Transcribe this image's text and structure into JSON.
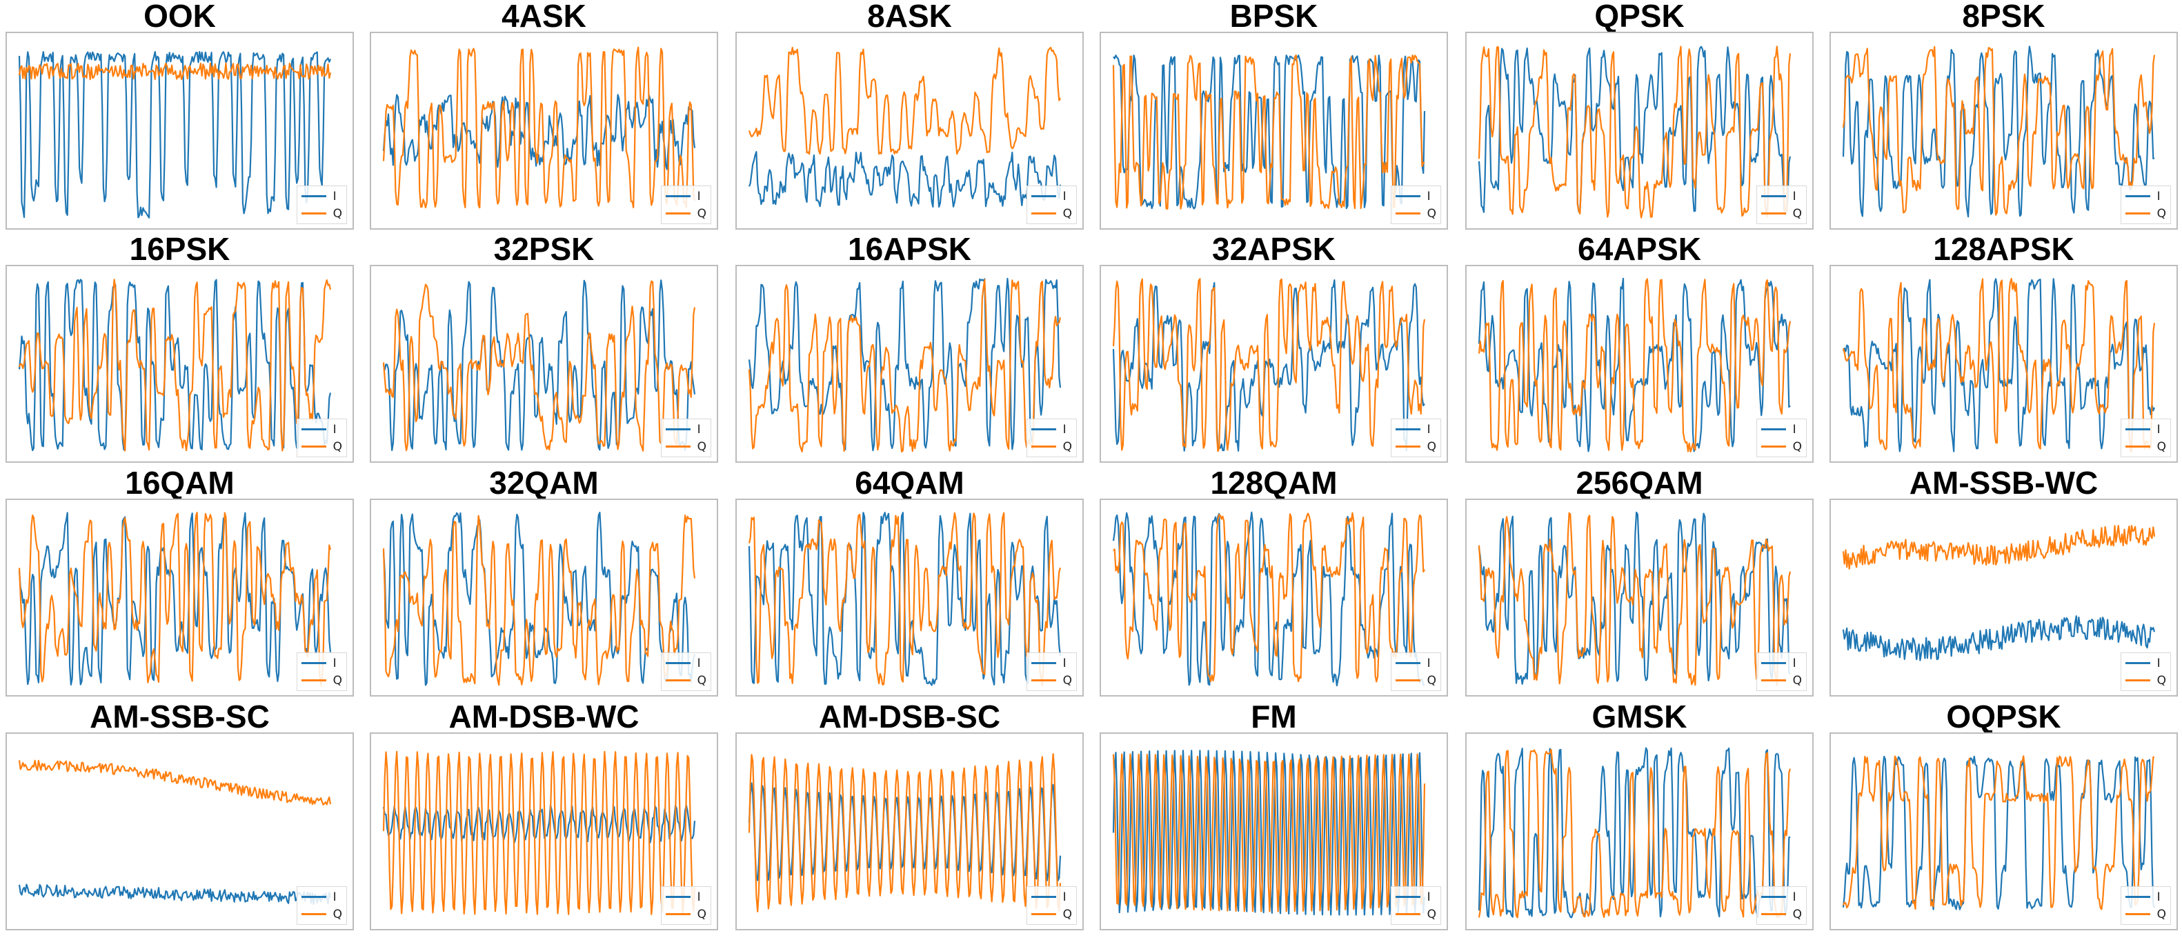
{
  "colors": {
    "I": "#1f77b4",
    "Q": "#ff7f0e",
    "frame": "#bdbdbd"
  },
  "legend": {
    "labels": [
      "I",
      "Q"
    ]
  },
  "chart_data": [
    {
      "type": "line",
      "title": "OOK",
      "series": [
        {
          "name": "I",
          "pattern": "ook_i"
        },
        {
          "name": "Q",
          "pattern": "ook_q"
        }
      ]
    },
    {
      "type": "line",
      "title": "4ASK",
      "series": [
        {
          "name": "I",
          "pattern": "ask_i"
        },
        {
          "name": "Q",
          "pattern": "ask_q"
        }
      ]
    },
    {
      "type": "line",
      "title": "8ASK",
      "series": [
        {
          "name": "I",
          "pattern": "ask8_i"
        },
        {
          "name": "Q",
          "pattern": "ask8_q"
        }
      ]
    },
    {
      "type": "line",
      "title": "BPSK",
      "series": [
        {
          "name": "I",
          "pattern": "bpsk"
        },
        {
          "name": "Q",
          "pattern": "bpsk"
        }
      ]
    },
    {
      "type": "line",
      "title": "QPSK",
      "series": [
        {
          "name": "I",
          "pattern": "psk"
        },
        {
          "name": "Q",
          "pattern": "psk"
        }
      ]
    },
    {
      "type": "line",
      "title": "8PSK",
      "series": [
        {
          "name": "I",
          "pattern": "psk"
        },
        {
          "name": "Q",
          "pattern": "psk"
        }
      ]
    },
    {
      "type": "line",
      "title": "16PSK",
      "series": [
        {
          "name": "I",
          "pattern": "psk"
        },
        {
          "name": "Q",
          "pattern": "psk"
        }
      ]
    },
    {
      "type": "line",
      "title": "32PSK",
      "series": [
        {
          "name": "I",
          "pattern": "psk"
        },
        {
          "name": "Q",
          "pattern": "psk"
        }
      ]
    },
    {
      "type": "line",
      "title": "16APSK",
      "series": [
        {
          "name": "I",
          "pattern": "apsk"
        },
        {
          "name": "Q",
          "pattern": "apsk"
        }
      ]
    },
    {
      "type": "line",
      "title": "32APSK",
      "series": [
        {
          "name": "I",
          "pattern": "apsk"
        },
        {
          "name": "Q",
          "pattern": "apsk"
        }
      ]
    },
    {
      "type": "line",
      "title": "64APSK",
      "series": [
        {
          "name": "I",
          "pattern": "apsk"
        },
        {
          "name": "Q",
          "pattern": "apsk"
        }
      ]
    },
    {
      "type": "line",
      "title": "128APSK",
      "series": [
        {
          "name": "I",
          "pattern": "apsk"
        },
        {
          "name": "Q",
          "pattern": "apsk"
        }
      ]
    },
    {
      "type": "line",
      "title": "16QAM",
      "series": [
        {
          "name": "I",
          "pattern": "qam"
        },
        {
          "name": "Q",
          "pattern": "qam"
        }
      ]
    },
    {
      "type": "line",
      "title": "32QAM",
      "series": [
        {
          "name": "I",
          "pattern": "qam"
        },
        {
          "name": "Q",
          "pattern": "qam"
        }
      ]
    },
    {
      "type": "line",
      "title": "64QAM",
      "series": [
        {
          "name": "I",
          "pattern": "qam"
        },
        {
          "name": "Q",
          "pattern": "qam"
        }
      ]
    },
    {
      "type": "line",
      "title": "128QAM",
      "series": [
        {
          "name": "I",
          "pattern": "qam"
        },
        {
          "name": "Q",
          "pattern": "qam"
        }
      ]
    },
    {
      "type": "line",
      "title": "256QAM",
      "series": [
        {
          "name": "I",
          "pattern": "qam"
        },
        {
          "name": "Q",
          "pattern": "qam"
        }
      ]
    },
    {
      "type": "line",
      "title": "AM-SSB-WC",
      "series": [
        {
          "name": "I",
          "pattern": "ssbwc_i"
        },
        {
          "name": "Q",
          "pattern": "ssbwc_q"
        }
      ]
    },
    {
      "type": "line",
      "title": "AM-SSB-SC",
      "series": [
        {
          "name": "I",
          "pattern": "ssbsc_i"
        },
        {
          "name": "Q",
          "pattern": "ssbsc_q"
        }
      ]
    },
    {
      "type": "line",
      "title": "AM-DSB-WC",
      "series": [
        {
          "name": "I",
          "pattern": "dsbwc_i"
        },
        {
          "name": "Q",
          "pattern": "dsbwc_q"
        }
      ]
    },
    {
      "type": "line",
      "title": "AM-DSB-SC",
      "series": [
        {
          "name": "I",
          "pattern": "dsbsc_i"
        },
        {
          "name": "Q",
          "pattern": "dsbsc_q"
        }
      ]
    },
    {
      "type": "line",
      "title": "FM",
      "series": [
        {
          "name": "I",
          "pattern": "fm_i"
        },
        {
          "name": "Q",
          "pattern": "fm_q"
        }
      ]
    },
    {
      "type": "line",
      "title": "GMSK",
      "series": [
        {
          "name": "I",
          "pattern": "gmsk"
        },
        {
          "name": "Q",
          "pattern": "gmsk"
        }
      ]
    },
    {
      "type": "line",
      "title": "OQPSK",
      "series": [
        {
          "name": "I",
          "pattern": "oqpsk"
        },
        {
          "name": "Q",
          "pattern": "oqpsk"
        }
      ]
    }
  ]
}
